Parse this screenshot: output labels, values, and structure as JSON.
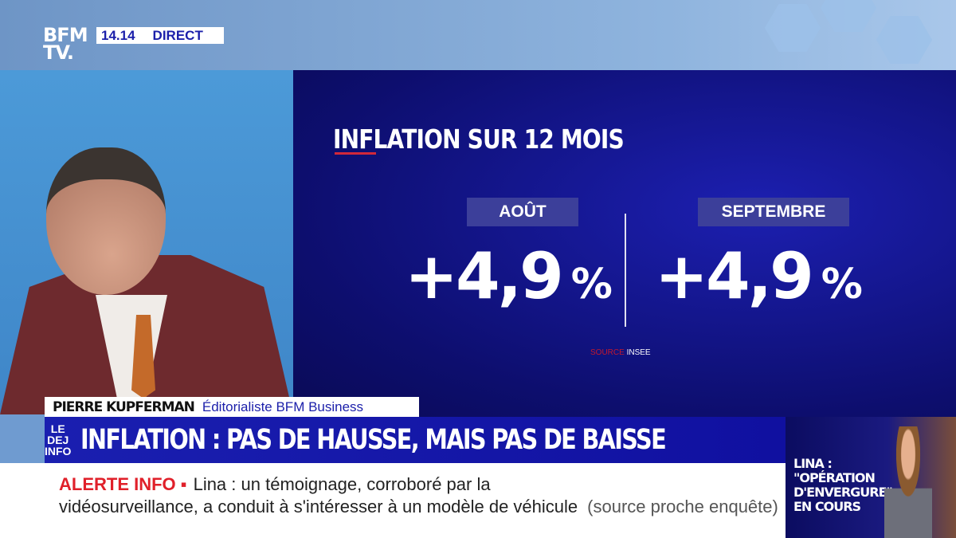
{
  "channel": {
    "logo": "BFM TV.",
    "time": "14.14",
    "live_label": "DIRECT"
  },
  "graphic": {
    "title": "INFLATION SUR 12 MOIS",
    "columns": [
      {
        "label": "AOÛT",
        "value": "+4,9",
        "unit": "%"
      },
      {
        "label": "SEPTEMBRE",
        "value": "+4,9",
        "unit": "%"
      }
    ],
    "source_label": "SOURCE",
    "source_value": "INSEE"
  },
  "lower_third": {
    "name": "PIERRE KUPFERMAN",
    "role": "Éditorialiste BFM Business",
    "show_logo": "LE DEJ INFO",
    "headline": "INFLATION : PAS DE HAUSSE, MAIS PAS DE BAISSE"
  },
  "ticker": {
    "alert_label": "ALERTE INFO ▪",
    "line1": "Lina : un témoignage, corroboré par la",
    "line2": "vidéosurveillance, a conduit à s'intéresser à un modèle de véhicule",
    "line2_source": "(source proche enquête)"
  },
  "inset": {
    "text": "LINA : \"OPÉRATION D'ENVERGURE\" EN COURS"
  },
  "colors": {
    "navy": "#1a1fb0",
    "alert_red": "#e0202a",
    "label_bg": "#3c3f9a"
  }
}
